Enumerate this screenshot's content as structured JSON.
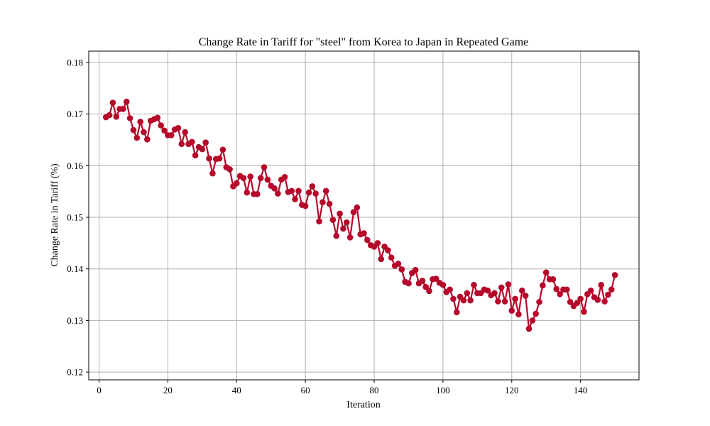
{
  "chart_data": {
    "type": "line",
    "title": "Change Rate in Tariff for \"steel\" from Korea to Japan in Repeated Game",
    "xlabel": "Iteration",
    "ylabel": "Change Rate in Tariff (%)",
    "xlim": [
      -3,
      157
    ],
    "ylim": [
      0.1185,
      0.1822
    ],
    "xticks": [
      0,
      20,
      40,
      60,
      80,
      100,
      120,
      140
    ],
    "yticks": [
      0.12,
      0.13,
      0.14,
      0.15,
      0.16,
      0.17,
      0.18
    ],
    "xtick_labels": [
      "0",
      "20",
      "40",
      "60",
      "80",
      "100",
      "120",
      "140"
    ],
    "ytick_labels": [
      "0.12",
      "0.13",
      "0.14",
      "0.15",
      "0.16",
      "0.17",
      "0.18"
    ],
    "grid": true,
    "series": [
      {
        "color": "#b5082a",
        "marker": "circle",
        "x": [
          2,
          3,
          4,
          5,
          6,
          7,
          8,
          9,
          10,
          11,
          12,
          13,
          14,
          15,
          16,
          17,
          18,
          19,
          20,
          21,
          22,
          23,
          24,
          25,
          26,
          27,
          28,
          29,
          30,
          31,
          32,
          33,
          34,
          35,
          36,
          37,
          38,
          39,
          40,
          41,
          42,
          43,
          44,
          45,
          46,
          47,
          48,
          49,
          50,
          51,
          52,
          53,
          54,
          55,
          56,
          57,
          58,
          59,
          60,
          61,
          62,
          63,
          64,
          65,
          66,
          67,
          68,
          69,
          70,
          71,
          72,
          73,
          74,
          75,
          76,
          77,
          78,
          79,
          80,
          81,
          82,
          83,
          84,
          85,
          86,
          87,
          88,
          89,
          90,
          91,
          92,
          93,
          94,
          95,
          96,
          97,
          98,
          99,
          100,
          101,
          102,
          103,
          104,
          105,
          106,
          107,
          108,
          109,
          110,
          111,
          112,
          113,
          114,
          115,
          116,
          117,
          118,
          119,
          120,
          121,
          122,
          123,
          124,
          125,
          126,
          127,
          128,
          129,
          130,
          131,
          132,
          133,
          134,
          135,
          136,
          137,
          138,
          139,
          140,
          141,
          142,
          143,
          144,
          145,
          146,
          147,
          148,
          149,
          150
        ],
        "values": [
          0.1694,
          0.1698,
          0.1722,
          0.1695,
          0.171,
          0.171,
          0.1724,
          0.1692,
          0.1669,
          0.1654,
          0.1685,
          0.1665,
          0.1651,
          0.1687,
          0.169,
          0.1693,
          0.1678,
          0.1668,
          0.1659,
          0.1659,
          0.167,
          0.1673,
          0.1642,
          0.1665,
          0.1642,
          0.1646,
          0.162,
          0.1636,
          0.1632,
          0.1645,
          0.1614,
          0.1585,
          0.1613,
          0.1614,
          0.1631,
          0.1597,
          0.1593,
          0.156,
          0.1566,
          0.158,
          0.1576,
          0.1548,
          0.1579,
          0.1545,
          0.1545,
          0.1576,
          0.1597,
          0.1573,
          0.1561,
          0.1556,
          0.1546,
          0.1573,
          0.1578,
          0.1549,
          0.1551,
          0.1535,
          0.1551,
          0.1524,
          0.1522,
          0.1548,
          0.156,
          0.1546,
          0.1492,
          0.1529,
          0.1551,
          0.1526,
          0.1495,
          0.1464,
          0.1507,
          0.1478,
          0.149,
          0.1461,
          0.151,
          0.1519,
          0.1467,
          0.1469,
          0.1456,
          0.1446,
          0.1443,
          0.145,
          0.1419,
          0.1443,
          0.1436,
          0.1422,
          0.1406,
          0.141,
          0.1399,
          0.1375,
          0.1372,
          0.1392,
          0.1398,
          0.1372,
          0.1377,
          0.1365,
          0.1357,
          0.138,
          0.1381,
          0.1373,
          0.1369,
          0.1355,
          0.136,
          0.1342,
          0.1316,
          0.1346,
          0.1339,
          0.1353,
          0.1339,
          0.1369,
          0.1353,
          0.1353,
          0.136,
          0.1358,
          0.1349,
          0.1353,
          0.1337,
          0.1364,
          0.1337,
          0.137,
          0.1319,
          0.1342,
          0.1312,
          0.1358,
          0.1348,
          0.1284,
          0.13,
          0.1313,
          0.1336,
          0.1368,
          0.1393,
          0.138,
          0.138,
          0.1361,
          0.1351,
          0.136,
          0.136,
          0.1336,
          0.1328,
          0.1334,
          0.1342,
          0.1317,
          0.1351,
          0.1358,
          0.1345,
          0.134,
          0.1369,
          0.1337,
          0.135,
          0.136,
          0.1388
        ]
      }
    ]
  }
}
